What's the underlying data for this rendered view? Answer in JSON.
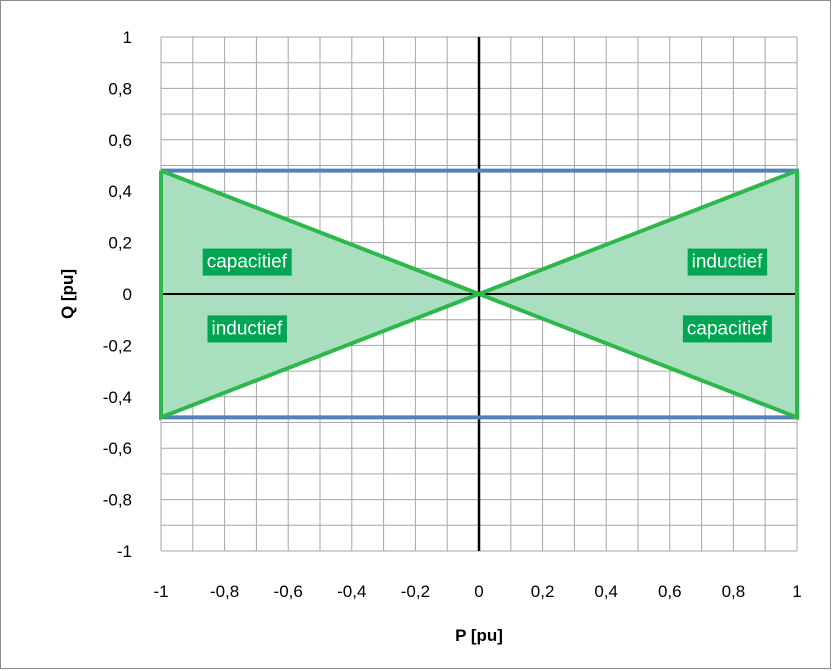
{
  "chart_data": {
    "type": "line",
    "title": "",
    "xlabel": "P [pu]",
    "ylabel": "Q [pu]",
    "xlim": [
      -1,
      1
    ],
    "ylim": [
      -1,
      1
    ],
    "x_ticks": [
      -1,
      -0.8,
      -0.6,
      -0.4,
      -0.2,
      0,
      0.2,
      0.4,
      0.6,
      0.8,
      1
    ],
    "x_tick_labels": [
      "-1",
      "-0,8",
      "-0,6",
      "-0,4",
      "-0,2",
      "0",
      "0,2",
      "0,4",
      "0,6",
      "0,8",
      "1"
    ],
    "y_ticks": [
      -1,
      -0.8,
      -0.6,
      -0.4,
      -0.2,
      0,
      0.2,
      0.4,
      0.6,
      0.8,
      1
    ],
    "y_tick_labels": [
      "-1",
      "-0,8",
      "-0,6",
      "-0,4",
      "-0,2",
      "0",
      "0,2",
      "0,4",
      "0,6",
      "0,8",
      "1"
    ],
    "grid": true,
    "legend": "none",
    "series": [
      {
        "kind": "rectangle",
        "color": "#4f81bd",
        "points": [
          [
            -1,
            0.48
          ],
          [
            1,
            0.48
          ],
          [
            1,
            -0.48
          ],
          [
            -1,
            -0.48
          ],
          [
            -1,
            0.48
          ]
        ]
      },
      {
        "kind": "filled-triangle",
        "color": "#2db84b",
        "fill": "#a9dfbf",
        "points": [
          [
            -1,
            0.48
          ],
          [
            0,
            0
          ],
          [
            -1,
            -0.48
          ],
          [
            -1,
            0.48
          ]
        ]
      },
      {
        "kind": "filled-triangle",
        "color": "#2db84b",
        "fill": "#a9dfbf",
        "points": [
          [
            1,
            0.48
          ],
          [
            0,
            0
          ],
          [
            1,
            -0.48
          ],
          [
            1,
            0.48
          ]
        ]
      }
    ],
    "annotations": [
      {
        "text": "capacitief",
        "x": -0.73,
        "y": 0.13
      },
      {
        "text": "inductief",
        "x": -0.73,
        "y": -0.13
      },
      {
        "text": "inductief",
        "x": 0.78,
        "y": 0.13
      },
      {
        "text": "capacitief",
        "x": 0.78,
        "y": -0.13
      }
    ],
    "annotation_bg": "#00a651",
    "grid_color": "#a6a6a6",
    "axis_color": "#000000"
  }
}
